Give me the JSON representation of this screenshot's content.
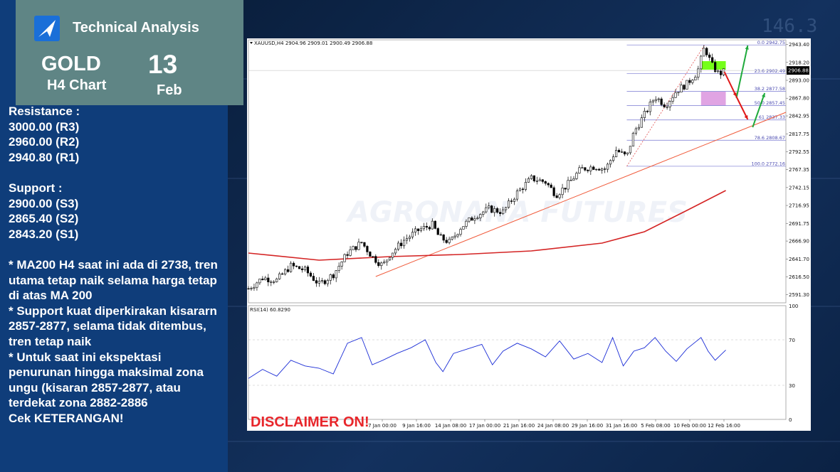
{
  "header": {
    "brand": "Technical Analysis",
    "asset": "GOLD",
    "timeframe": "H4 Chart",
    "day": "13",
    "month": "Feb"
  },
  "levels": {
    "resistance_title": "Resistance :",
    "resistance": [
      "3000.00 (R3)",
      "2960.00 (R2)",
      "2940.80 (R1)"
    ],
    "support_title": "Support :",
    "support": [
      "2900.00 (S3)",
      "2865.40 (S2)",
      "2843.20 (S1)"
    ]
  },
  "notes": [
    "* MA200 H4 saat ini ada di 2738, tren utama tetap naik selama harga tetap di atas MA  200",
    "* Support kuat diperkirakan kisararn 2857-2877, selama tidak ditembus, tren tetap naik",
    "* Untuk saat ini ekspektasi penurunan hingga maksimal zona ungu (kisaran 2857-2877, atau terdekat zona 2882-2886",
    "Cek KETERANGAN!"
  ],
  "disclaimer": "DISCLAIMER ON!",
  "watermark": "AGRONANA FUTURES",
  "background_numbers": [
    "146.3"
  ],
  "colors": {
    "candle": "#000000",
    "ma200": "#d42424",
    "trendline": "#f05a3a",
    "fib": "#8c8cd8",
    "green_zone": "#66ff00",
    "purple_zone": "#dd9ae0",
    "rsi": "#1a2cd6",
    "arrow_up": "#1faa3c",
    "arrow_down": "#e01818"
  },
  "chart_data": {
    "type": "candlestick",
    "symbol_header": "XAUUSD,H4  2904.96 2909.01 2900.49 2906.88",
    "current_price": "2906.88",
    "ylim": [
      2580,
      2950
    ],
    "y_ticks": [
      "2943.40",
      "2918.20",
      "2893.00",
      "2867.80",
      "2842.95",
      "2817.75",
      "2792.55",
      "2767.35",
      "2742.15",
      "2716.95",
      "2691.75",
      "2666.90",
      "2641.70",
      "2616.50",
      "2591.30"
    ],
    "x_ticks": [
      "7 Jan 00:00",
      "9 Jan 16:00",
      "14 Jan 08:00",
      "17 Jan 00:00",
      "21 Jan 16:00",
      "24 Jan 08:00",
      "29 Jan 16:00",
      "31 Jan 16:00",
      "5 Feb 08:00",
      "10 Feb 00:00",
      "12 Feb 16:00"
    ],
    "price_path": [
      [
        0,
        2600
      ],
      [
        20,
        2615
      ],
      [
        40,
        2612
      ],
      [
        60,
        2632
      ],
      [
        80,
        2626
      ],
      [
        100,
        2606
      ],
      [
        120,
        2620
      ],
      [
        140,
        2650
      ],
      [
        160,
        2665
      ],
      [
        175,
        2645
      ],
      [
        190,
        2632
      ],
      [
        200,
        2648
      ],
      [
        220,
        2668
      ],
      [
        240,
        2682
      ],
      [
        260,
        2690
      ],
      [
        270,
        2672
      ],
      [
        285,
        2665
      ],
      [
        300,
        2686
      ],
      [
        320,
        2702
      ],
      [
        340,
        2712
      ],
      [
        360,
        2708
      ],
      [
        380,
        2735
      ],
      [
        400,
        2755
      ],
      [
        420,
        2750
      ],
      [
        435,
        2732
      ],
      [
        450,
        2745
      ],
      [
        470,
        2768
      ],
      [
        490,
        2772
      ],
      [
        505,
        2768
      ],
      [
        520,
        2795
      ],
      [
        535,
        2785
      ],
      [
        545,
        2820
      ],
      [
        560,
        2845
      ],
      [
        575,
        2870
      ],
      [
        590,
        2858
      ],
      [
        605,
        2878
      ],
      [
        620,
        2888
      ],
      [
        635,
        2905
      ],
      [
        645,
        2940
      ],
      [
        655,
        2915
      ],
      [
        665,
        2902
      ],
      [
        675,
        2906
      ]
    ],
    "ma200": [
      [
        0,
        2650
      ],
      [
        100,
        2640
      ],
      [
        200,
        2645
      ],
      [
        300,
        2648
      ],
      [
        400,
        2653
      ],
      [
        500,
        2664
      ],
      [
        560,
        2680
      ],
      [
        620,
        2710
      ],
      [
        675,
        2738
      ]
    ],
    "trendline": {
      "from": [
        180,
        2617
      ],
      "to": [
        760,
        2848
      ]
    },
    "fib_levels": [
      {
        "ratio": "0.0",
        "price": "2942.75"
      },
      {
        "ratio": "23.6",
        "price": "2902.49"
      },
      {
        "ratio": "38.2",
        "price": "2877.58"
      },
      {
        "ratio": "50.0",
        "price": "2857.45"
      },
      {
        "ratio": "61",
        "price": "2837.33"
      },
      {
        "ratio": "78.6",
        "price": "2808.67"
      },
      {
        "ratio": "100.0",
        "price": "2772.16"
      }
    ],
    "zones": [
      {
        "name": "green",
        "from": 2908,
        "to": 2920
      },
      {
        "name": "purple",
        "from": 2857,
        "to": 2877
      }
    ],
    "arrows": [
      {
        "color": "up",
        "from": [
          690,
          2868
        ],
        "to": [
          706,
          2942
        ]
      },
      {
        "color": "down",
        "from": [
          673,
          2905
        ],
        "to": [
          690,
          2870
        ]
      },
      {
        "color": "down",
        "from": [
          690,
          2870
        ],
        "to": [
          706,
          2838
        ]
      },
      {
        "color": "up",
        "from": [
          713,
          2827
        ],
        "to": [
          730,
          2875
        ]
      }
    ],
    "rsi": {
      "label": "RSI(14) 60.8290",
      "scale_labels": [
        "100",
        "70",
        "30",
        "0"
      ],
      "values": [
        [
          0,
          36
        ],
        [
          20,
          44
        ],
        [
          40,
          38
        ],
        [
          60,
          52
        ],
        [
          80,
          47
        ],
        [
          100,
          45
        ],
        [
          120,
          40
        ],
        [
          140,
          67
        ],
        [
          160,
          72
        ],
        [
          175,
          48
        ],
        [
          190,
          52
        ],
        [
          210,
          58
        ],
        [
          230,
          63
        ],
        [
          250,
          70
        ],
        [
          265,
          50
        ],
        [
          275,
          42
        ],
        [
          290,
          58
        ],
        [
          310,
          62
        ],
        [
          330,
          66
        ],
        [
          345,
          48
        ],
        [
          360,
          60
        ],
        [
          380,
          67
        ],
        [
          400,
          62
        ],
        [
          420,
          55
        ],
        [
          440,
          69
        ],
        [
          460,
          53
        ],
        [
          480,
          58
        ],
        [
          500,
          50
        ],
        [
          515,
          72
        ],
        [
          530,
          47
        ],
        [
          545,
          60
        ],
        [
          560,
          63
        ],
        [
          575,
          72
        ],
        [
          590,
          60
        ],
        [
          605,
          51
        ],
        [
          620,
          62
        ],
        [
          640,
          72
        ],
        [
          650,
          60
        ],
        [
          660,
          52
        ],
        [
          675,
          61
        ]
      ]
    }
  }
}
